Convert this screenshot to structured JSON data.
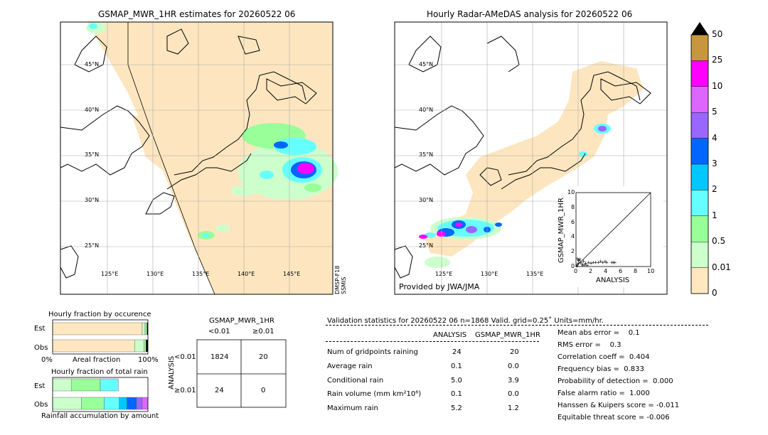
{
  "left_map": {
    "title": "GSMAP_MWR_1HR estimates for 20260522 06",
    "lat_labels": [
      "45°N",
      "40°N",
      "35°N",
      "30°N",
      "25°N"
    ],
    "lon_labels": [
      "125°E",
      "130°E",
      "135°E",
      "140°E",
      "145°E"
    ],
    "sensor_label": "DMSP-F18\nSSMIS"
  },
  "right_map": {
    "title": "Hourly Radar-AMeDAS analysis for 20260522 06",
    "lat_labels": [
      "45°N",
      "40°N",
      "35°N",
      "30°N",
      "25°N"
    ],
    "lon_labels": [
      "125°E",
      "130°E",
      "135°E"
    ],
    "credit": "Provided by JWA/JMA"
  },
  "colorbar": {
    "labels": [
      "50",
      "25",
      "10",
      "5",
      "4",
      "3",
      "2",
      "1",
      "0.5",
      "0.01",
      "0"
    ],
    "colors": [
      "#c8963c",
      "#ff00ff",
      "#dd66ff",
      "#9966ff",
      "#0066ff",
      "#00c8ff",
      "#66ffff",
      "#99ff99",
      "#ccffcc",
      "#ffe8c0"
    ]
  },
  "chart_data": [
    {
      "type": "scatter",
      "xlabel": "ANALYSIS",
      "ylabel": "GSMAP_MWR_1HR",
      "xlim": [
        0,
        10
      ],
      "ylim": [
        0,
        10
      ],
      "x_ticks": [
        "0",
        "2",
        "4",
        "6",
        "8",
        "10"
      ],
      "y_ticks": [
        "0",
        "2",
        "4",
        "6",
        "8",
        "10"
      ],
      "points": [
        [
          0.1,
          0.1
        ],
        [
          0.2,
          0.3
        ],
        [
          0.3,
          0.5
        ],
        [
          0.4,
          0.8
        ],
        [
          0.5,
          1.0
        ],
        [
          0.6,
          0.6
        ],
        [
          0.3,
          0.9
        ],
        [
          0.2,
          1.1
        ],
        [
          0.8,
          0.4
        ],
        [
          0.9,
          0.2
        ],
        [
          1.0,
          0.7
        ],
        [
          1.2,
          0.3
        ],
        [
          1.3,
          0.5
        ],
        [
          1.5,
          0.2
        ],
        [
          1.7,
          0.6
        ],
        [
          2.0,
          0.5
        ],
        [
          2.3,
          0.6
        ],
        [
          2.6,
          0.6
        ],
        [
          3.0,
          0.6
        ],
        [
          3.3,
          0.7
        ],
        [
          3.6,
          0.6
        ],
        [
          3.9,
          0.7
        ],
        [
          4.1,
          0.6
        ],
        [
          4.8,
          0.6
        ],
        [
          5.0,
          0.6
        ],
        [
          5.2,
          0.6
        ]
      ]
    },
    {
      "type": "bar",
      "title": "Hourly fraction by occurence",
      "categories": [
        "Est",
        "Obs"
      ],
      "xlabel": "Areal fraction",
      "x_tick_labels": [
        "0%",
        "100%"
      ],
      "series": [
        {
          "values": [
            0.94,
            0.86
          ]
        },
        {
          "values": [
            0.03,
            0.1
          ]
        },
        {
          "values": [
            0.02,
            0.02
          ]
        },
        {
          "values": [
            0.01,
            0.02
          ]
        }
      ]
    },
    {
      "type": "bar",
      "title": "Hourly fraction of total rain",
      "categories": [
        "Est",
        "Obs"
      ],
      "xlabel": "Rainfall accumulation by amount",
      "series": [
        {
          "values": [
            0.2,
            0.3
          ]
        },
        {
          "values": [
            0.3,
            0.24
          ]
        },
        {
          "values": [
            0.19,
            0.16
          ]
        },
        {
          "values": [
            0.0,
            0.08
          ]
        },
        {
          "values": [
            0.0,
            0.1
          ]
        },
        {
          "values": [
            0.0,
            0.06
          ]
        },
        {
          "values": [
            0.0,
            0.06
          ]
        }
      ]
    }
  ],
  "contingency": {
    "title": "GSMAP_MWR_1HR",
    "col_headers": [
      "<0.01",
      "≥0.01"
    ],
    "row_label": "ANALYSIS",
    "row_headers": [
      "<0.01",
      "≥0.01"
    ],
    "cells": [
      [
        "1824",
        "20"
      ],
      [
        "24",
        "0"
      ]
    ]
  },
  "validation": {
    "header": "Validation statistics for 20260522 06  n=1868 Valid. grid=0.25˚ Units=mm/hr.",
    "col_headers": [
      "ANALYSIS",
      "GSMAP_MWR_1HR"
    ],
    "rows": [
      {
        "label": "Num of gridpoints raining",
        "a": "24",
        "b": "20"
      },
      {
        "label": "Average rain",
        "a": "0.1",
        "b": "0.0"
      },
      {
        "label": "Conditional rain",
        "a": "5.0",
        "b": "3.9"
      },
      {
        "label": "Rain volume (mm km²10⁶)",
        "a": "0.1",
        "b": "0.0"
      },
      {
        "label": "Maximum rain",
        "a": "5.2",
        "b": "1.2"
      }
    ],
    "scores": [
      "Mean abs error =    0.1",
      "RMS error =    0.3",
      "Correlation coeff =  0.404",
      "Frequency bias =  0.833",
      "Probability of detection =  0.000",
      "False alarm ratio =  1.000",
      "Hanssen & Kuipers score = -0.011",
      "Equitable threat score = -0.006"
    ]
  }
}
